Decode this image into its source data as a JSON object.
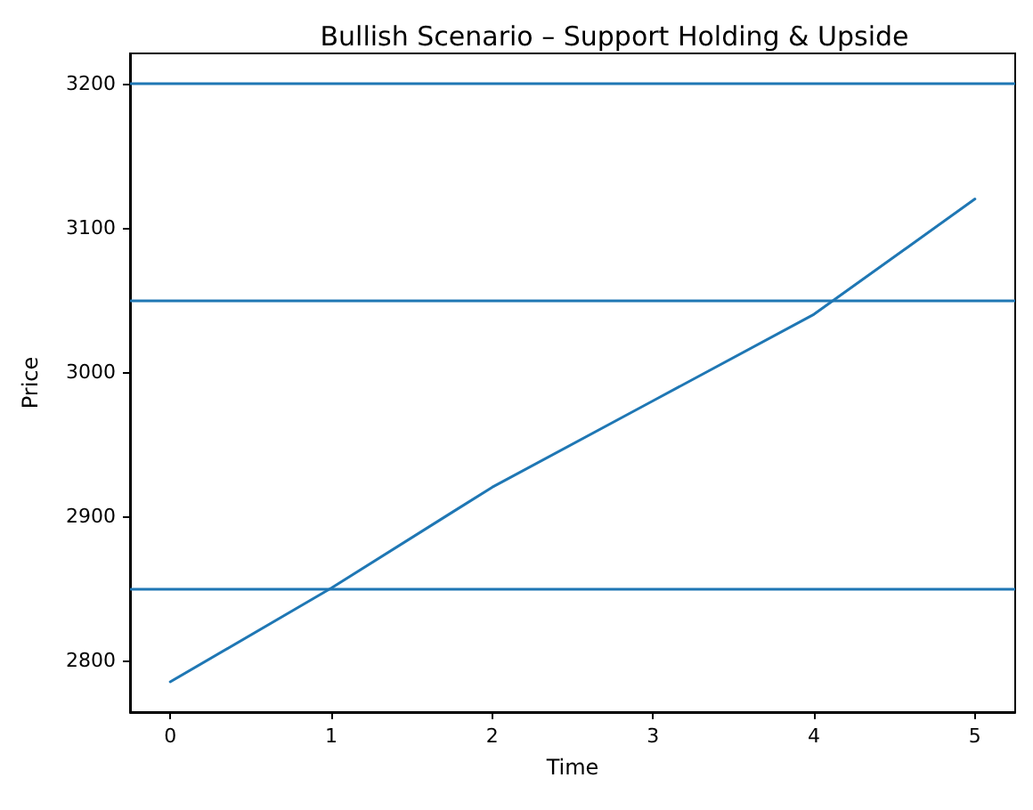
{
  "chart_data": {
    "type": "line",
    "title": "Bullish Scenario – Support Holding & Upside",
    "xlabel": "Time",
    "ylabel": "Price",
    "x": [
      0,
      1,
      2,
      3,
      4,
      5
    ],
    "series": [
      {
        "color": "#1f77b4",
        "values": [
          2785,
          2850,
          2920,
          2980,
          3040,
          3120
        ]
      }
    ],
    "xlim": [
      -0.25,
      5.25
    ],
    "xticks": [
      0,
      1,
      2,
      3,
      4,
      5
    ],
    "ylim": [
      2764,
      3221
    ],
    "yticks": [
      2800,
      2900,
      3000,
      3100,
      3200
    ],
    "ref_lines": [
      {
        "axis": "y",
        "value": 3200,
        "color": "#1f77b4"
      },
      {
        "axis": "y",
        "value": 3050,
        "color": "#1f77b4"
      },
      {
        "axis": "y",
        "value": 2850,
        "color": "#1f77b4"
      }
    ],
    "grid": false,
    "marker": "none",
    "line_style": "solid"
  }
}
